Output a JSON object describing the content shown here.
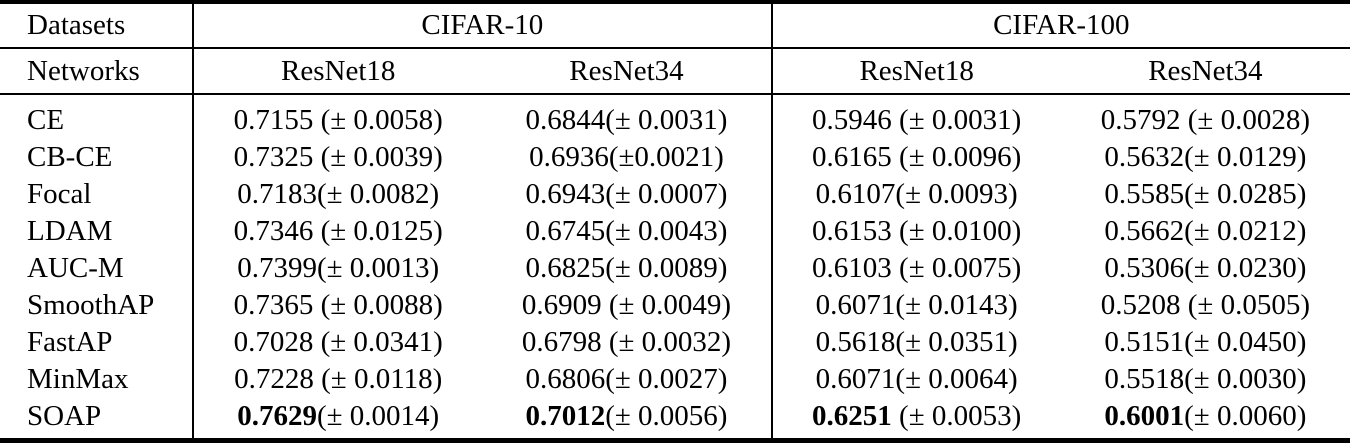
{
  "colors": {
    "text": "#000000",
    "background": "#ffffff",
    "rule": "#000000"
  },
  "table": {
    "header": {
      "datasets_label": "Datasets",
      "networks_label": "Networks",
      "dataset_groups": [
        {
          "name": "CIFAR-10",
          "networks": [
            "ResNet18",
            "ResNet34"
          ]
        },
        {
          "name": "CIFAR-100",
          "networks": [
            "ResNet18",
            "ResNet34"
          ]
        }
      ]
    },
    "rows": [
      {
        "method": "CE",
        "cells": [
          {
            "m": "0.7155",
            "s": " (± 0.0058)",
            "bold": false
          },
          {
            "m": "0.6844",
            "s": "(± 0.0031)",
            "bold": false
          },
          {
            "m": "0.5946",
            "s": " (± 0.0031)",
            "bold": false
          },
          {
            "m": "0.5792",
            "s": " (± 0.0028)",
            "bold": false
          }
        ]
      },
      {
        "method": "CB-CE",
        "cells": [
          {
            "m": "0.7325",
            "s": " (± 0.0039)",
            "bold": false
          },
          {
            "m": "0.6936",
            "s": "(±0.0021)",
            "bold": false
          },
          {
            "m": "0.6165",
            "s": " (± 0.0096)",
            "bold": false
          },
          {
            "m": "0.5632",
            "s": "(± 0.0129)",
            "bold": false
          }
        ]
      },
      {
        "method": "Focal",
        "cells": [
          {
            "m": "0.7183",
            "s": "(± 0.0082)",
            "bold": false
          },
          {
            "m": "0.6943",
            "s": "(± 0.0007)",
            "bold": false
          },
          {
            "m": "0.6107",
            "s": "(± 0.0093)",
            "bold": false
          },
          {
            "m": "0.5585",
            "s": "(± 0.0285)",
            "bold": false
          }
        ]
      },
      {
        "method": "LDAM",
        "cells": [
          {
            "m": "0.7346",
            "s": " (± 0.0125)",
            "bold": false
          },
          {
            "m": "0.6745",
            "s": "(± 0.0043)",
            "bold": false
          },
          {
            "m": "0.6153",
            "s": " (± 0.0100)",
            "bold": false
          },
          {
            "m": "0.5662",
            "s": "(± 0.0212)",
            "bold": false
          }
        ]
      },
      {
        "method": "AUC-M",
        "cells": [
          {
            "m": "0.7399",
            "s": "(± 0.0013)",
            "bold": false
          },
          {
            "m": "0.6825",
            "s": "(± 0.0089)",
            "bold": false
          },
          {
            "m": "0.6103",
            "s": " (± 0.0075)",
            "bold": false
          },
          {
            "m": "0.5306",
            "s": "(± 0.0230)",
            "bold": false
          }
        ]
      },
      {
        "method": "SmoothAP",
        "cells": [
          {
            "m": "0.7365",
            "s": " (± 0.0088)",
            "bold": false
          },
          {
            "m": "0.6909",
            "s": " (± 0.0049)",
            "bold": false
          },
          {
            "m": "0.6071",
            "s": "(± 0.0143)",
            "bold": false
          },
          {
            "m": "0.5208",
            "s": " (± 0.0505)",
            "bold": false
          }
        ]
      },
      {
        "method": "FastAP",
        "cells": [
          {
            "m": "0.7028",
            "s": " (± 0.0341)",
            "bold": false
          },
          {
            "m": "0.6798",
            "s": " (± 0.0032)",
            "bold": false
          },
          {
            "m": "0.5618",
            "s": "(± 0.0351)",
            "bold": false
          },
          {
            "m": "0.5151",
            "s": "(± 0.0450)",
            "bold": false
          }
        ]
      },
      {
        "method": "MinMax",
        "cells": [
          {
            "m": "0.7228",
            "s": " (± 0.0118)",
            "bold": false
          },
          {
            "m": "0.6806",
            "s": "(± 0.0027)",
            "bold": false
          },
          {
            "m": "0.6071",
            "s": "(± 0.0064)",
            "bold": false
          },
          {
            "m": "0.5518",
            "s": "(± 0.0030)",
            "bold": false
          }
        ]
      },
      {
        "method": "SOAP",
        "cells": [
          {
            "m": "0.7629",
            "s": "(± 0.0014)",
            "bold": true
          },
          {
            "m": "0.7012",
            "s": "(± 0.0056)",
            "bold": true
          },
          {
            "m": "0.6251",
            "s": " (± 0.0053)",
            "bold": true
          },
          {
            "m": "0.6001",
            "s": "(± 0.0060)",
            "bold": true
          }
        ]
      }
    ]
  }
}
